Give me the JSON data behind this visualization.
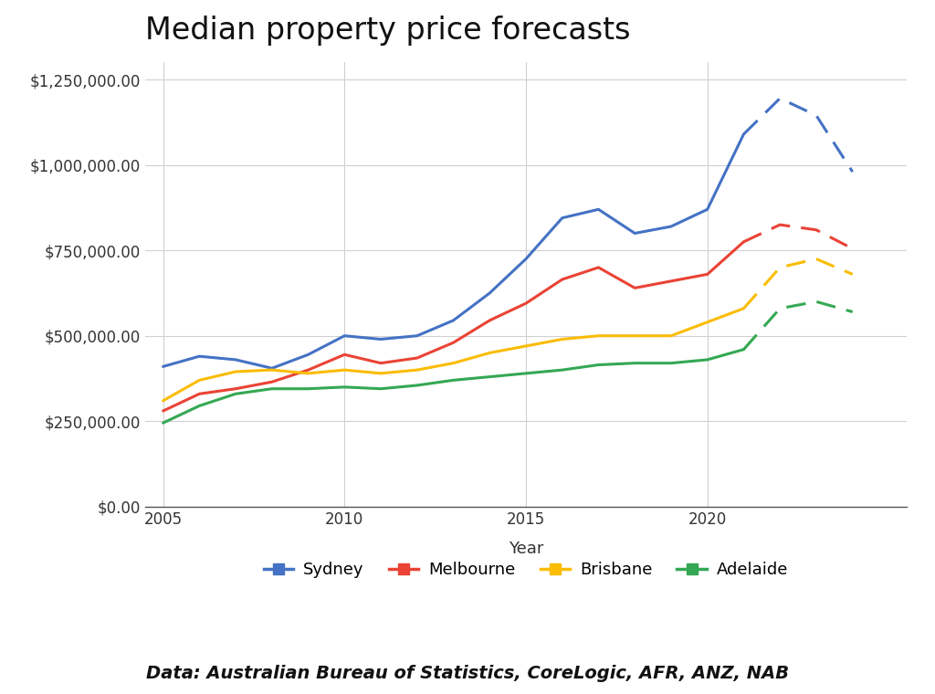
{
  "title": "Median property price forecasts",
  "xlabel": "Year",
  "source_text": "Data: Australian Bureau of Statistics, CoreLogic, AFR, ANZ, NAB",
  "background_color": "#ffffff",
  "ylim": [
    0,
    1300000
  ],
  "yticks": [
    0,
    250000,
    500000,
    750000,
    1000000,
    1250000
  ],
  "xlim": [
    2004.5,
    2025.5
  ],
  "xticks": [
    2005,
    2010,
    2015,
    2020
  ],
  "series": {
    "Sydney": {
      "color": "#4472C4",
      "solid_years": [
        2005,
        2006,
        2007,
        2008,
        2009,
        2010,
        2011,
        2012,
        2013,
        2014,
        2015,
        2016,
        2017,
        2018,
        2019,
        2020,
        2021
      ],
      "solid_values": [
        410000,
        440000,
        430000,
        405000,
        445000,
        500000,
        490000,
        500000,
        545000,
        625000,
        725000,
        845000,
        870000,
        800000,
        820000,
        870000,
        1090000
      ],
      "dashed_years": [
        2021,
        2022,
        2023,
        2024
      ],
      "dashed_values": [
        1090000,
        1195000,
        1145000,
        980000
      ]
    },
    "Melbourne": {
      "color": "#EA4335",
      "solid_years": [
        2005,
        2006,
        2007,
        2008,
        2009,
        2010,
        2011,
        2012,
        2013,
        2014,
        2015,
        2016,
        2017,
        2018,
        2019,
        2020,
        2021
      ],
      "solid_values": [
        280000,
        330000,
        345000,
        365000,
        400000,
        445000,
        420000,
        435000,
        480000,
        545000,
        595000,
        665000,
        700000,
        640000,
        660000,
        680000,
        775000
      ],
      "dashed_years": [
        2021,
        2022,
        2023,
        2024
      ],
      "dashed_values": [
        775000,
        825000,
        810000,
        755000
      ]
    },
    "Brisbane": {
      "color": "#FBBC04",
      "solid_years": [
        2005,
        2006,
        2007,
        2008,
        2009,
        2010,
        2011,
        2012,
        2013,
        2014,
        2015,
        2016,
        2017,
        2018,
        2019,
        2020,
        2021
      ],
      "solid_values": [
        310000,
        370000,
        395000,
        400000,
        390000,
        400000,
        390000,
        400000,
        420000,
        450000,
        470000,
        490000,
        500000,
        500000,
        500000,
        540000,
        580000
      ],
      "dashed_years": [
        2021,
        2022,
        2023,
        2024
      ],
      "dashed_values": [
        580000,
        700000,
        725000,
        680000
      ]
    },
    "Adelaide": {
      "color": "#34A853",
      "solid_years": [
        2005,
        2006,
        2007,
        2008,
        2009,
        2010,
        2011,
        2012,
        2013,
        2014,
        2015,
        2016,
        2017,
        2018,
        2019,
        2020,
        2021
      ],
      "solid_values": [
        245000,
        295000,
        330000,
        345000,
        345000,
        350000,
        345000,
        355000,
        370000,
        380000,
        390000,
        400000,
        415000,
        420000,
        420000,
        430000,
        460000
      ],
      "dashed_years": [
        2021,
        2022,
        2023,
        2024
      ],
      "dashed_values": [
        460000,
        580000,
        600000,
        570000
      ]
    }
  },
  "legend_labels": [
    "Sydney",
    "Melbourne",
    "Brisbane",
    "Adelaide"
  ],
  "legend_colors": [
    "#4472C4",
    "#EA4335",
    "#FBBC04",
    "#34A853"
  ],
  "title_fontsize": 24,
  "axis_label_fontsize": 13,
  "tick_fontsize": 12,
  "source_fontsize": 14,
  "legend_fontsize": 13,
  "line_width": 2.2
}
